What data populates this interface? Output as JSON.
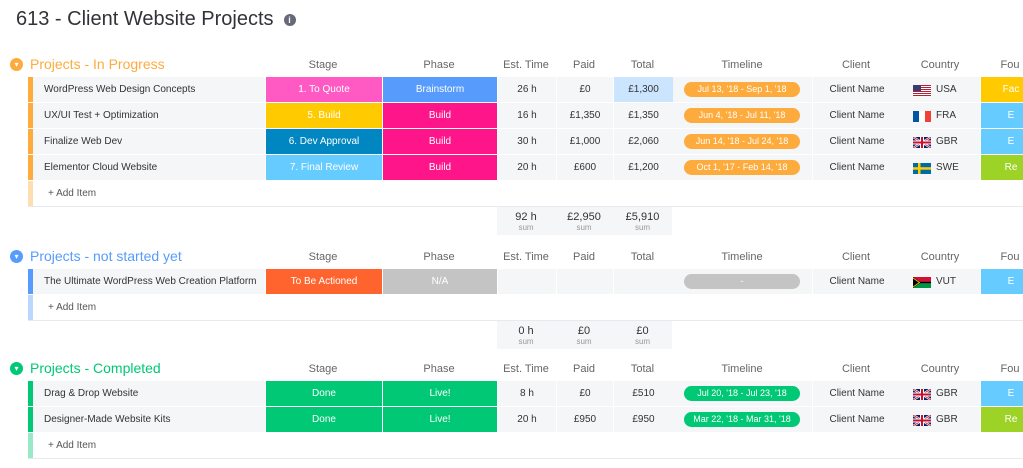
{
  "board": {
    "title": "613 - Client Website Projects"
  },
  "columns": [
    "Stage",
    "Phase",
    "Est. Time",
    "Paid",
    "Total",
    "Timeline",
    "Client",
    "Country",
    "Fou"
  ],
  "groups": [
    {
      "title": "Projects - In Progress",
      "color": "#fdab3d",
      "add_item": "+ Add Item",
      "rows": [
        {
          "name": "WordPress Web Design Concepts",
          "stage": "1. To Quote",
          "stage_color": "#ff5ac4",
          "phase": "Brainstorm",
          "phase_color": "#579bfc",
          "time": "26 h",
          "paid": "£0",
          "total": "£1,300",
          "timeline": "Jul 13, '18 - Sep 1, '18",
          "client": "Client Name",
          "country": "USA",
          "fou": "Fac",
          "fou_color": "#ffcb00"
        },
        {
          "name": "UX/UI Test + Optimization",
          "stage": "5. Build",
          "stage_color": "#ffcb00",
          "phase": "Build",
          "phase_color": "#ff158a",
          "time": "16 h",
          "paid": "£1,350",
          "total": "£1,350",
          "timeline": "Jun 4, '18 - Jul 11, '18",
          "client": "Client Name",
          "country": "FRA",
          "fou": "E",
          "fou_color": "#66ccff"
        },
        {
          "name": "Finalize Web Dev",
          "stage": "6. Dev Approval",
          "stage_color": "#0086c0",
          "phase": "Build",
          "phase_color": "#ff158a",
          "time": "30 h",
          "paid": "£1,000",
          "total": "£2,060",
          "timeline": "Jun 14, '18 - Jul 24, '18",
          "client": "Client Name",
          "country": "GBR",
          "fou": "E",
          "fou_color": "#66ccff"
        },
        {
          "name": "Elementor Cloud Website",
          "stage": "7. Final Review",
          "stage_color": "#66ccff",
          "phase": "Build",
          "phase_color": "#ff158a",
          "time": "20 h",
          "paid": "£600",
          "total": "£1,200",
          "timeline": "Oct 1, '17 - Feb 14, '18",
          "client": "Client Name",
          "country": "SWE",
          "fou": "Re",
          "fou_color": "#9cd326"
        }
      ],
      "sum": {
        "time": "92 h",
        "paid": "£2,950",
        "total": "£5,910",
        "label": "sum"
      }
    },
    {
      "title": "Projects - not started yet",
      "color": "#579bfc",
      "add_item": "+ Add Item",
      "rows": [
        {
          "name": "The Ultimate WordPress Web Creation Platform",
          "stage": "To Be Actioned",
          "stage_color": "#ff642e",
          "phase": "N/A",
          "phase_color": "#c4c4c4",
          "time": "",
          "paid": "",
          "total": "",
          "timeline": "-",
          "client": "Client Name",
          "country": "VUT",
          "fou": "E",
          "fou_color": "#66ccff"
        }
      ],
      "sum": {
        "time": "0 h",
        "paid": "£0",
        "total": "£0",
        "label": "sum"
      }
    },
    {
      "title": "Projects - Completed",
      "color": "#00c875",
      "add_item": "+ Add Item",
      "rows": [
        {
          "name": "Drag & Drop Website",
          "stage": "Done",
          "stage_color": "#00c875",
          "phase": "Live!",
          "phase_color": "#00c875",
          "time": "8 h",
          "paid": "£0",
          "total": "£510",
          "timeline": "Jul 20, '18 - Jul 23, '18",
          "client": "Client Name",
          "country": "GBR",
          "fou": "E",
          "fou_color": "#66ccff"
        },
        {
          "name": "Designer-Made Website Kits",
          "stage": "Done",
          "stage_color": "#00c875",
          "phase": "Live!",
          "phase_color": "#00c875",
          "time": "20 h",
          "paid": "£950",
          "total": "£950",
          "timeline": "Mar 22, '18 - Mar 31, '18",
          "client": "Client Name",
          "country": "GBR",
          "fou": "Re",
          "fou_color": "#9cd326"
        }
      ]
    }
  ]
}
